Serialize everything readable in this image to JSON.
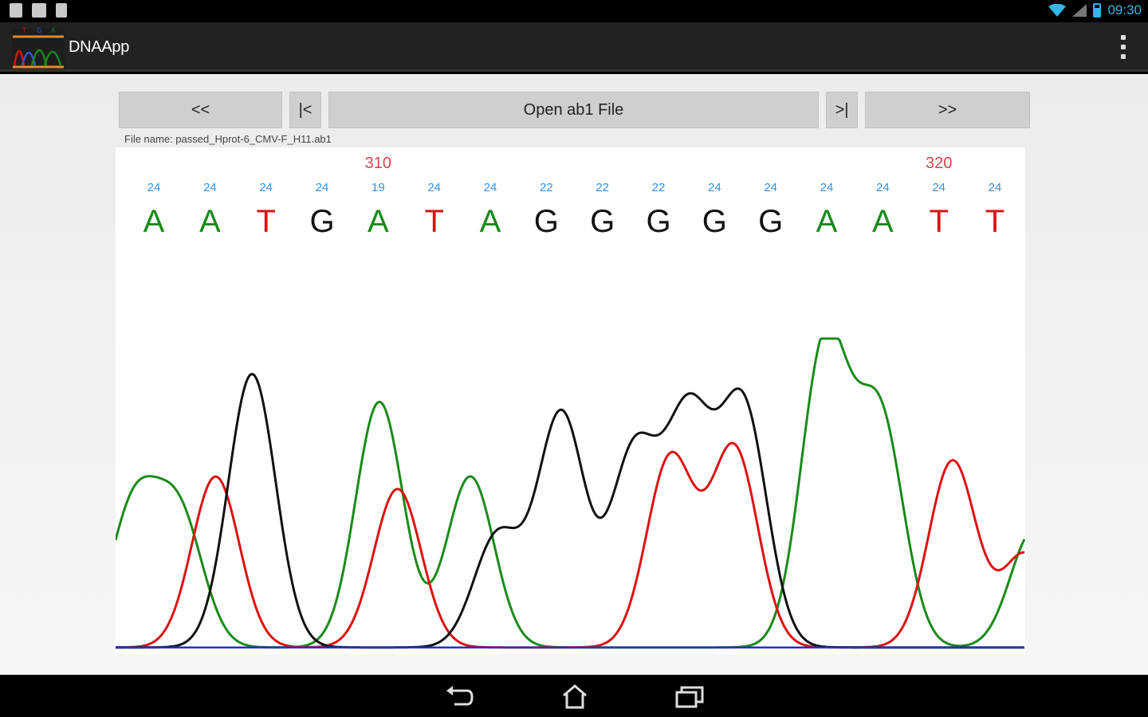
{
  "status_bar": {
    "time": "09:30",
    "left_icons": [
      "debug-icon",
      "keyboard-icon",
      "sd-card-icon"
    ],
    "right_icons": [
      "wifi-icon",
      "signal-icon",
      "battery-icon"
    ]
  },
  "action_bar": {
    "title": "DNAApp",
    "logo_letters": [
      "T",
      "G",
      "A"
    ],
    "overflow_icon": "overflow-menu-icon"
  },
  "controls": {
    "prev_page": "<<",
    "first": "|<",
    "open_file": "Open ab1 File",
    "last": ">|",
    "next_page": ">>"
  },
  "file_name": "File name: passed_Hprot-6_CMV-F_H11.ab1",
  "sequence": {
    "positions": [
      {
        "label": "310",
        "base_index": 4
      },
      {
        "label": "320",
        "base_index": 14
      }
    ],
    "bases": [
      {
        "base": "A",
        "quality": "24"
      },
      {
        "base": "A",
        "quality": "24"
      },
      {
        "base": "T",
        "quality": "24"
      },
      {
        "base": "G",
        "quality": "24"
      },
      {
        "base": "A",
        "quality": "19"
      },
      {
        "base": "T",
        "quality": "24"
      },
      {
        "base": "A",
        "quality": "24"
      },
      {
        "base": "G",
        "quality": "22"
      },
      {
        "base": "G",
        "quality": "22"
      },
      {
        "base": "G",
        "quality": "22"
      },
      {
        "base": "G",
        "quality": "24"
      },
      {
        "base": "G",
        "quality": "24"
      },
      {
        "base": "A",
        "quality": "24"
      },
      {
        "base": "A",
        "quality": "24"
      },
      {
        "base": "T",
        "quality": "24"
      },
      {
        "base": "T",
        "quality": "24"
      }
    ]
  },
  "chart_data": {
    "type": "line",
    "title": "",
    "xlabel": "",
    "ylabel": "",
    "ylim": [
      0,
      100
    ],
    "series": [
      {
        "name": "A",
        "color": "#1a8a1a",
        "peaks": [
          [
            2,
            45
          ],
          [
            7,
            42
          ],
          [
            29,
            79
          ],
          [
            39,
            55
          ],
          [
            78,
            98
          ],
          [
            84,
            74
          ],
          [
            101,
            38
          ]
        ]
      },
      {
        "name": "T",
        "color": "#dd1111",
        "peaks": [
          [
            11,
            55
          ],
          [
            31,
            51
          ],
          [
            61,
            61
          ],
          [
            68,
            64
          ],
          [
            92,
            60
          ],
          [
            100,
            30
          ]
        ]
      },
      {
        "name": "G",
        "color": "#111111",
        "peaks": [
          [
            15,
            88
          ],
          [
            42,
            36
          ],
          [
            49,
            75
          ],
          [
            57,
            62
          ],
          [
            63,
            72
          ],
          [
            69,
            77
          ]
        ]
      },
      {
        "name": "C",
        "color": "#2233cc",
        "peaks": []
      }
    ],
    "colors": {
      "A": "#1a8a1a",
      "T": "#dd1111",
      "G": "#111111",
      "C": "#2233cc",
      "quality": "#3a8fd6",
      "position": "#d6464a"
    }
  },
  "nav_bar": {
    "back_icon": "back-icon",
    "home_icon": "home-icon",
    "recents_icon": "recent-apps-icon"
  }
}
